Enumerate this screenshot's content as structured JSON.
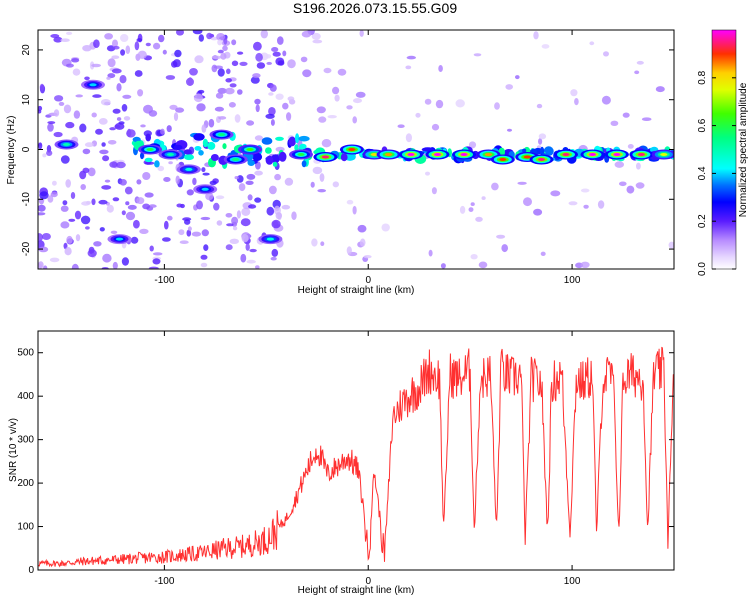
{
  "title": "S196.2026.073.15.55.G09",
  "chart_data": [
    {
      "type": "heatmap",
      "xlabel": "Height of straight line (km)",
      "ylabel": "Frequency (Hz)",
      "xlim": [
        -162,
        150
      ],
      "ylim": [
        -24,
        24
      ],
      "xticks": [
        -100,
        0,
        100
      ],
      "yticks": [
        -20,
        -10,
        0,
        10,
        20
      ],
      "colorbar": {
        "label": "Normalized spectral amplitude",
        "ticks": [
          0.0,
          0.2,
          0.4,
          0.6,
          0.8
        ],
        "range": [
          0,
          1
        ]
      },
      "peaks": [
        {
          "x": -148,
          "y": 1,
          "a": 0.45
        },
        {
          "x": -135,
          "y": 13,
          "a": 0.35
        },
        {
          "x": -122,
          "y": -18,
          "a": 0.35
        },
        {
          "x": -107,
          "y": 0,
          "a": 0.55
        },
        {
          "x": -97,
          "y": -1,
          "a": 0.45
        },
        {
          "x": -88,
          "y": -4,
          "a": 0.4
        },
        {
          "x": -80,
          "y": -8,
          "a": 0.35
        },
        {
          "x": -72,
          "y": 3,
          "a": 0.5
        },
        {
          "x": -65,
          "y": -2,
          "a": 0.5
        },
        {
          "x": -58,
          "y": 0,
          "a": 0.6
        },
        {
          "x": -48,
          "y": -18,
          "a": 0.4
        },
        {
          "x": -33,
          "y": -1,
          "a": 0.55
        },
        {
          "x": -21,
          "y": -1.5,
          "a": 0.9
        },
        {
          "x": -8,
          "y": 0,
          "a": 0.85
        },
        {
          "x": 3,
          "y": -1,
          "a": 0.75
        },
        {
          "x": 10,
          "y": -1,
          "a": 0.8
        },
        {
          "x": 21,
          "y": -1,
          "a": 0.95
        },
        {
          "x": 34,
          "y": -1,
          "a": 0.95
        },
        {
          "x": 47,
          "y": -1,
          "a": 0.95
        },
        {
          "x": 59,
          "y": -1,
          "a": 0.8
        },
        {
          "x": 66,
          "y": -2,
          "a": 0.85
        },
        {
          "x": 78,
          "y": -1.5,
          "a": 0.85
        },
        {
          "x": 85,
          "y": -2,
          "a": 0.9
        },
        {
          "x": 97,
          "y": -1,
          "a": 0.9
        },
        {
          "x": 110,
          "y": -1,
          "a": 0.95
        },
        {
          "x": 122,
          "y": -1,
          "a": 0.95
        },
        {
          "x": 134,
          "y": -1,
          "a": 0.9
        },
        {
          "x": 145,
          "y": -1,
          "a": 0.7
        }
      ]
    },
    {
      "type": "line",
      "xlabel": "Height of straight line (km)",
      "ylabel": "SNR (10 * v/v)",
      "xlim": [
        -162,
        150
      ],
      "ylim": [
        0,
        550
      ],
      "xticks": [
        -100,
        0,
        100
      ],
      "yticks": [
        0,
        100,
        200,
        300,
        400,
        500
      ],
      "line_color": "#ff3030",
      "series": [
        {
          "name": "SNR",
          "x": [
            -162,
            -150,
            -140,
            -130,
            -120,
            -110,
            -100,
            -90,
            -80,
            -70,
            -60,
            -50,
            -45,
            -40,
            -35,
            -30,
            -25,
            -20,
            -15,
            -10,
            -5,
            -2,
            0,
            3,
            8,
            12,
            16,
            20,
            25,
            30,
            35,
            37,
            40,
            45,
            50,
            52,
            55,
            60,
            63,
            65,
            70,
            75,
            77,
            80,
            85,
            88,
            90,
            95,
            99,
            102,
            105,
            110,
            112,
            115,
            120,
            123,
            125,
            130,
            135,
            137,
            140,
            145,
            147,
            150
          ],
          "y": [
            15,
            15,
            20,
            22,
            25,
            28,
            30,
            35,
            40,
            50,
            55,
            70,
            90,
            120,
            170,
            230,
            280,
            220,
            240,
            260,
            230,
            130,
            30,
            230,
            30,
            350,
            380,
            400,
            420,
            460,
            440,
            80,
            450,
            440,
            460,
            80,
            440,
            450,
            80,
            460,
            440,
            450,
            80,
            440,
            430,
            80,
            430,
            450,
            80,
            440,
            430,
            450,
            80,
            440,
            450,
            80,
            440,
            450,
            440,
            80,
            450,
            460,
            80,
            450
          ]
        }
      ]
    }
  ]
}
